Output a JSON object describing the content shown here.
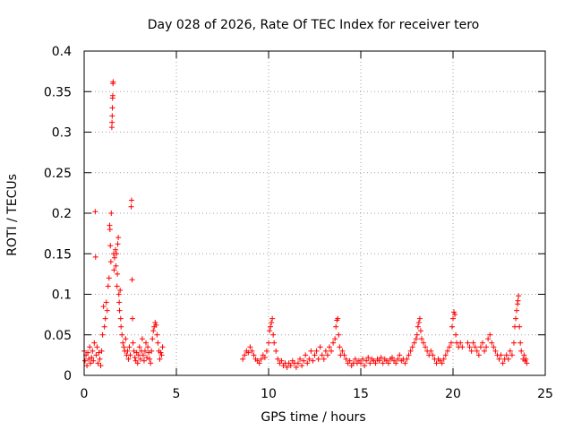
{
  "chart_data": {
    "type": "scatter",
    "title": "Day 028 of 2026, Rate Of TEC Index for receiver tero",
    "xlabel": "GPS time / hours",
    "ylabel": "ROTI / TECUs",
    "xlim": [
      0,
      25
    ],
    "ylim": [
      0,
      0.4
    ],
    "xticks": [
      0,
      5,
      10,
      15,
      20,
      25
    ],
    "xtick_labels": [
      "0",
      "5",
      "10",
      "15",
      "20",
      "25"
    ],
    "yticks": [
      0,
      0.05,
      0.1,
      0.15,
      0.2,
      0.25,
      0.3,
      0.35,
      0.4
    ],
    "ytick_labels": [
      "0",
      "0.05",
      "0.1",
      "0.15",
      "0.2",
      "0.25",
      "0.3",
      "0.35",
      "0.4"
    ],
    "grid": true,
    "marker": "+",
    "color": "#ff0000",
    "series": [
      {
        "name": "ROTI",
        "points": [
          [
            0.0,
            0.03
          ],
          [
            0.05,
            0.018
          ],
          [
            0.1,
            0.025
          ],
          [
            0.15,
            0.012
          ],
          [
            0.2,
            0.028
          ],
          [
            0.25,
            0.02
          ],
          [
            0.3,
            0.035
          ],
          [
            0.35,
            0.015
          ],
          [
            0.4,
            0.022
          ],
          [
            0.45,
            0.03
          ],
          [
            0.5,
            0.018
          ],
          [
            0.55,
            0.04
          ],
          [
            0.6,
            0.202
          ],
          [
            0.62,
            0.146
          ],
          [
            0.65,
            0.025
          ],
          [
            0.7,
            0.035
          ],
          [
            0.75,
            0.015
          ],
          [
            0.8,
            0.028
          ],
          [
            0.85,
            0.02
          ],
          [
            0.9,
            0.012
          ],
          [
            0.95,
            0.03
          ],
          [
            1.0,
            0.05
          ],
          [
            1.05,
            0.085
          ],
          [
            1.1,
            0.06
          ],
          [
            1.15,
            0.07
          ],
          [
            1.2,
            0.09
          ],
          [
            1.25,
            0.08
          ],
          [
            1.3,
            0.11
          ],
          [
            1.35,
            0.12
          ],
          [
            1.38,
            0.185
          ],
          [
            1.4,
            0.18
          ],
          [
            1.42,
            0.16
          ],
          [
            1.45,
            0.14
          ],
          [
            1.47,
            0.2
          ],
          [
            1.5,
            0.306
          ],
          [
            1.51,
            0.312
          ],
          [
            1.52,
            0.32
          ],
          [
            1.53,
            0.33
          ],
          [
            1.54,
            0.342
          ],
          [
            1.55,
            0.345
          ],
          [
            1.56,
            0.36
          ],
          [
            1.57,
            0.362
          ],
          [
            1.6,
            0.15
          ],
          [
            1.62,
            0.13
          ],
          [
            1.65,
            0.145
          ],
          [
            1.7,
            0.155
          ],
          [
            1.72,
            0.135
          ],
          [
            1.75,
            0.15
          ],
          [
            1.78,
            0.11
          ],
          [
            1.8,
            0.125
          ],
          [
            1.82,
            0.162
          ],
          [
            1.85,
            0.17
          ],
          [
            1.88,
            0.1
          ],
          [
            1.9,
            0.09
          ],
          [
            1.92,
            0.08
          ],
          [
            1.95,
            0.105
          ],
          [
            1.98,
            0.07
          ],
          [
            2.0,
            0.06
          ],
          [
            2.05,
            0.05
          ],
          [
            2.1,
            0.04
          ],
          [
            2.15,
            0.035
          ],
          [
            2.2,
            0.03
          ],
          [
            2.25,
            0.045
          ],
          [
            2.3,
            0.025
          ],
          [
            2.35,
            0.03
          ],
          [
            2.4,
            0.02
          ],
          [
            2.45,
            0.035
          ],
          [
            2.5,
            0.025
          ],
          [
            2.55,
            0.208
          ],
          [
            2.57,
            0.216
          ],
          [
            2.6,
            0.118
          ],
          [
            2.62,
            0.07
          ],
          [
            2.65,
            0.04
          ],
          [
            2.7,
            0.03
          ],
          [
            2.75,
            0.022
          ],
          [
            2.8,
            0.018
          ],
          [
            2.85,
            0.028
          ],
          [
            2.9,
            0.015
          ],
          [
            2.95,
            0.025
          ],
          [
            3.0,
            0.035
          ],
          [
            3.05,
            0.02
          ],
          [
            3.1,
            0.03
          ],
          [
            3.15,
            0.045
          ],
          [
            3.2,
            0.025
          ],
          [
            3.25,
            0.018
          ],
          [
            3.3,
            0.03
          ],
          [
            3.35,
            0.04
          ],
          [
            3.4,
            0.022
          ],
          [
            3.45,
            0.035
          ],
          [
            3.5,
            0.028
          ],
          [
            3.55,
            0.02
          ],
          [
            3.6,
            0.015
          ],
          [
            3.65,
            0.03
          ],
          [
            3.7,
            0.045
          ],
          [
            3.75,
            0.055
          ],
          [
            3.8,
            0.06
          ],
          [
            3.85,
            0.065
          ],
          [
            3.9,
            0.062
          ],
          [
            3.95,
            0.05
          ],
          [
            4.0,
            0.04
          ],
          [
            4.05,
            0.03
          ],
          [
            4.1,
            0.02
          ],
          [
            4.15,
            0.028
          ],
          [
            4.2,
            0.025
          ],
          [
            4.25,
            0.035
          ],
          [
            8.6,
            0.02
          ],
          [
            8.7,
            0.025
          ],
          [
            8.8,
            0.03
          ],
          [
            8.9,
            0.028
          ],
          [
            9.0,
            0.035
          ],
          [
            9.1,
            0.03
          ],
          [
            9.2,
            0.025
          ],
          [
            9.3,
            0.02
          ],
          [
            9.4,
            0.018
          ],
          [
            9.5,
            0.015
          ],
          [
            9.6,
            0.02
          ],
          [
            9.7,
            0.025
          ],
          [
            9.8,
            0.022
          ],
          [
            9.9,
            0.03
          ],
          [
            10.0,
            0.04
          ],
          [
            10.05,
            0.055
          ],
          [
            10.1,
            0.06
          ],
          [
            10.15,
            0.065
          ],
          [
            10.2,
            0.07
          ],
          [
            10.25,
            0.05
          ],
          [
            10.3,
            0.04
          ],
          [
            10.4,
            0.03
          ],
          [
            10.5,
            0.02
          ],
          [
            10.6,
            0.015
          ],
          [
            10.7,
            0.018
          ],
          [
            10.8,
            0.012
          ],
          [
            10.9,
            0.015
          ],
          [
            11.0,
            0.01
          ],
          [
            11.1,
            0.015
          ],
          [
            11.2,
            0.012
          ],
          [
            11.3,
            0.018
          ],
          [
            11.4,
            0.015
          ],
          [
            11.5,
            0.01
          ],
          [
            11.6,
            0.015
          ],
          [
            11.7,
            0.02
          ],
          [
            11.8,
            0.012
          ],
          [
            11.9,
            0.018
          ],
          [
            12.0,
            0.025
          ],
          [
            12.1,
            0.015
          ],
          [
            12.2,
            0.02
          ],
          [
            12.3,
            0.03
          ],
          [
            12.4,
            0.018
          ],
          [
            12.5,
            0.025
          ],
          [
            12.6,
            0.03
          ],
          [
            12.7,
            0.02
          ],
          [
            12.8,
            0.035
          ],
          [
            12.9,
            0.025
          ],
          [
            13.0,
            0.02
          ],
          [
            13.1,
            0.03
          ],
          [
            13.2,
            0.025
          ],
          [
            13.3,
            0.035
          ],
          [
            13.4,
            0.03
          ],
          [
            13.5,
            0.04
          ],
          [
            13.6,
            0.045
          ],
          [
            13.65,
            0.06
          ],
          [
            13.7,
            0.068
          ],
          [
            13.75,
            0.07
          ],
          [
            13.8,
            0.05
          ],
          [
            13.85,
            0.035
          ],
          [
            13.9,
            0.025
          ],
          [
            14.0,
            0.03
          ],
          [
            14.1,
            0.025
          ],
          [
            14.2,
            0.02
          ],
          [
            14.3,
            0.015
          ],
          [
            14.4,
            0.018
          ],
          [
            14.5,
            0.012
          ],
          [
            14.6,
            0.015
          ],
          [
            14.7,
            0.02
          ],
          [
            14.8,
            0.015
          ],
          [
            14.9,
            0.018
          ],
          [
            15.0,
            0.015
          ],
          [
            15.1,
            0.02
          ],
          [
            15.2,
            0.012
          ],
          [
            15.3,
            0.018
          ],
          [
            15.4,
            0.022
          ],
          [
            15.5,
            0.015
          ],
          [
            15.6,
            0.02
          ],
          [
            15.7,
            0.018
          ],
          [
            15.8,
            0.015
          ],
          [
            15.9,
            0.02
          ],
          [
            16.0,
            0.018
          ],
          [
            16.1,
            0.022
          ],
          [
            16.2,
            0.015
          ],
          [
            16.3,
            0.02
          ],
          [
            16.4,
            0.018
          ],
          [
            16.5,
            0.015
          ],
          [
            16.6,
            0.02
          ],
          [
            16.7,
            0.022
          ],
          [
            16.8,
            0.018
          ],
          [
            16.9,
            0.015
          ],
          [
            17.0,
            0.02
          ],
          [
            17.1,
            0.025
          ],
          [
            17.2,
            0.018
          ],
          [
            17.3,
            0.02
          ],
          [
            17.4,
            0.015
          ],
          [
            17.5,
            0.02
          ],
          [
            17.6,
            0.025
          ],
          [
            17.7,
            0.03
          ],
          [
            17.8,
            0.035
          ],
          [
            17.9,
            0.04
          ],
          [
            18.0,
            0.045
          ],
          [
            18.05,
            0.05
          ],
          [
            18.1,
            0.06
          ],
          [
            18.15,
            0.065
          ],
          [
            18.2,
            0.07
          ],
          [
            18.25,
            0.055
          ],
          [
            18.3,
            0.045
          ],
          [
            18.4,
            0.04
          ],
          [
            18.5,
            0.035
          ],
          [
            18.6,
            0.03
          ],
          [
            18.7,
            0.025
          ],
          [
            18.8,
            0.03
          ],
          [
            18.9,
            0.025
          ],
          [
            19.0,
            0.02
          ],
          [
            19.1,
            0.015
          ],
          [
            19.2,
            0.02
          ],
          [
            19.3,
            0.018
          ],
          [
            19.4,
            0.015
          ],
          [
            19.5,
            0.02
          ],
          [
            19.6,
            0.025
          ],
          [
            19.7,
            0.03
          ],
          [
            19.8,
            0.035
          ],
          [
            19.9,
            0.04
          ],
          [
            19.95,
            0.06
          ],
          [
            20.0,
            0.07
          ],
          [
            20.05,
            0.078
          ],
          [
            20.1,
            0.075
          ],
          [
            20.15,
            0.05
          ],
          [
            20.2,
            0.04
          ],
          [
            20.3,
            0.035
          ],
          [
            20.4,
            0.04
          ],
          [
            20.5,
            0.035
          ],
          [
            20.8,
            0.04
          ],
          [
            20.9,
            0.035
          ],
          [
            21.0,
            0.03
          ],
          [
            21.1,
            0.04
          ],
          [
            21.2,
            0.035
          ],
          [
            21.3,
            0.03
          ],
          [
            21.4,
            0.025
          ],
          [
            21.5,
            0.035
          ],
          [
            21.6,
            0.04
          ],
          [
            21.7,
            0.03
          ],
          [
            21.8,
            0.035
          ],
          [
            21.9,
            0.045
          ],
          [
            22.0,
            0.05
          ],
          [
            22.1,
            0.04
          ],
          [
            22.2,
            0.035
          ],
          [
            22.3,
            0.03
          ],
          [
            22.4,
            0.025
          ],
          [
            22.5,
            0.02
          ],
          [
            22.6,
            0.025
          ],
          [
            22.7,
            0.015
          ],
          [
            22.8,
            0.02
          ],
          [
            22.9,
            0.025
          ],
          [
            23.0,
            0.02
          ],
          [
            23.1,
            0.03
          ],
          [
            23.2,
            0.025
          ],
          [
            23.3,
            0.04
          ],
          [
            23.35,
            0.06
          ],
          [
            23.4,
            0.07
          ],
          [
            23.45,
            0.08
          ],
          [
            23.5,
            0.088
          ],
          [
            23.52,
            0.092
          ],
          [
            23.55,
            0.098
          ],
          [
            23.6,
            0.06
          ],
          [
            23.65,
            0.04
          ],
          [
            23.7,
            0.03
          ],
          [
            23.8,
            0.02
          ],
          [
            23.85,
            0.025
          ],
          [
            23.9,
            0.018
          ],
          [
            23.95,
            0.02
          ],
          [
            24.0,
            0.015
          ]
        ]
      }
    ]
  }
}
